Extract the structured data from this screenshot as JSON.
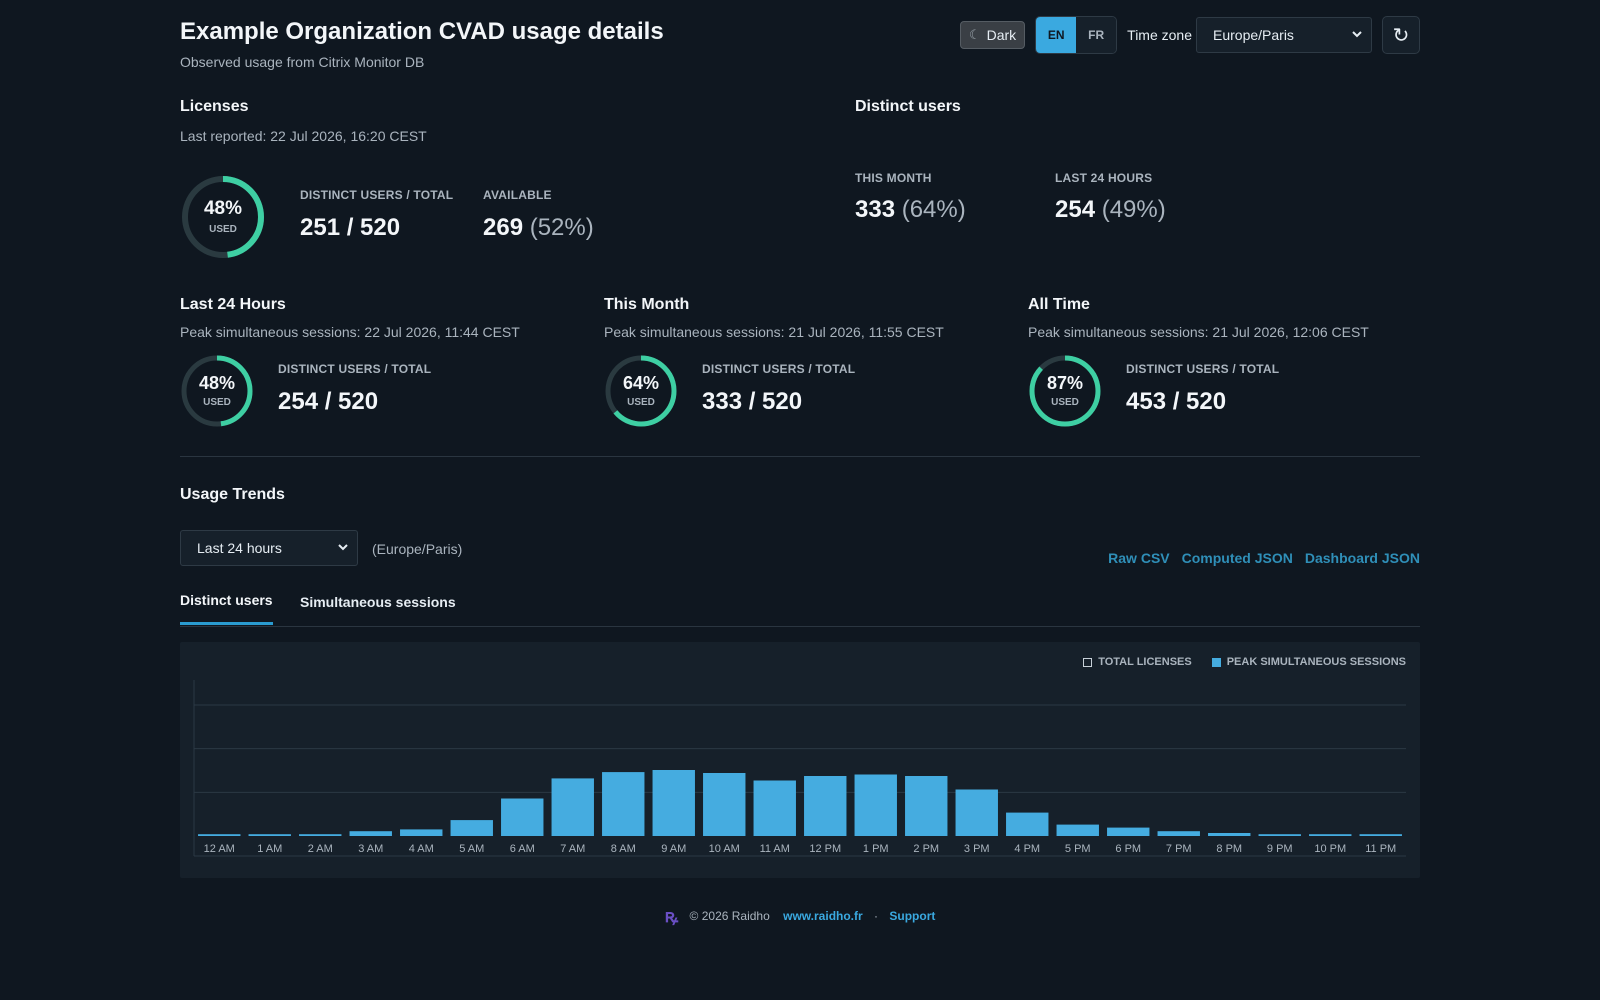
{
  "header": {
    "title": "Example Organization CVAD usage details",
    "subtitle": "Observed usage from Citrix Monitor DB",
    "theme_label": "Dark",
    "lang": [
      "EN",
      "FR"
    ],
    "timezone_label": "Time zone",
    "timezone_value": "Europe/Paris",
    "refresh_glyph": "↻"
  },
  "licenses": {
    "title": "Licenses",
    "last_reported": "Last reported: 22 Jul 2026, 16:20 CEST",
    "used_pct": 48,
    "used_pct_text": "48%",
    "used_label": "USED",
    "users_label": "DISTINCT USERS / TOTAL",
    "users_value": "251 / 520",
    "available_label": "AVAILABLE",
    "available_value": "269",
    "available_pct": "(52%)"
  },
  "distinct_users": {
    "title": "Distinct users",
    "this_month_label": "THIS MONTH",
    "this_month_value": "333",
    "this_month_pct": "(64%)",
    "last24_label": "LAST 24 HOURS",
    "last24_value": "254",
    "last24_pct": "(49%)"
  },
  "periods": [
    {
      "title": "Last 24 Hours",
      "peak": "Peak simultaneous sessions: 22 Jul 2026, 11:44 CEST",
      "used_pct": 48,
      "used_pct_text": "48%",
      "used_label": "USED",
      "users_label": "DISTINCT USERS / TOTAL",
      "users_value": "254 / 520"
    },
    {
      "title": "This Month",
      "peak": "Peak simultaneous sessions: 21 Jul 2026, 11:55 CEST",
      "used_pct": 64,
      "used_pct_text": "64%",
      "used_label": "USED",
      "users_label": "DISTINCT USERS / TOTAL",
      "users_value": "333 / 520"
    },
    {
      "title": "All Time",
      "peak": "Peak simultaneous sessions: 21 Jul 2026, 12:06 CEST",
      "used_pct": 87,
      "used_pct_text": "87%",
      "used_label": "USED",
      "users_label": "DISTINCT USERS / TOTAL",
      "users_value": "453 / 520"
    }
  ],
  "trends": {
    "title": "Usage Trends",
    "range_value": "Last 24 hours",
    "range_tz": "(Europe/Paris)",
    "links": [
      "Raw CSV",
      "Computed JSON",
      "Dashboard JSON"
    ],
    "tabs": [
      "Distinct users",
      "Simultaneous sessions"
    ],
    "active_tab": 0
  },
  "chart_data": {
    "type": "bar",
    "categories": [
      "12 AM",
      "1 AM",
      "2 AM",
      "3 AM",
      "4 AM",
      "5 AM",
      "6 AM",
      "7 AM",
      "8 AM",
      "9 AM",
      "10 AM",
      "11 AM",
      "12 PM",
      "1 PM",
      "2 PM",
      "3 PM",
      "4 PM",
      "5 PM",
      "6 PM",
      "7 PM",
      "8 PM",
      "9 PM",
      "10 PM",
      "11 PM"
    ],
    "series": [
      {
        "name": "TOTAL LICENSES",
        "values": [
          520,
          520,
          520,
          520,
          520,
          520,
          520,
          520,
          520,
          520,
          520,
          520,
          520,
          520,
          520,
          520,
          520,
          520,
          520,
          520,
          520,
          520,
          520,
          520
        ]
      },
      {
        "name": "PEAK SIMULTANEOUS SESSIONS",
        "values": [
          6,
          6,
          6,
          16,
          22,
          53,
          125,
          192,
          213,
          220,
          210,
          185,
          200,
          205,
          200,
          155,
          78,
          38,
          28,
          16,
          10,
          6,
          6,
          6
        ]
      }
    ],
    "ylim": [
      0,
      520
    ],
    "grid": true,
    "legend": "top-right",
    "colors": {
      "total": "#16202a",
      "peak": "#45ace0",
      "donut": "#3ecfa3",
      "track": "#2a3a40"
    }
  },
  "footer": {
    "logo": "ꝶ",
    "copyright": "© 2026 Raidho",
    "site": "www.raidho.fr",
    "sep": "·",
    "support": "Support"
  }
}
